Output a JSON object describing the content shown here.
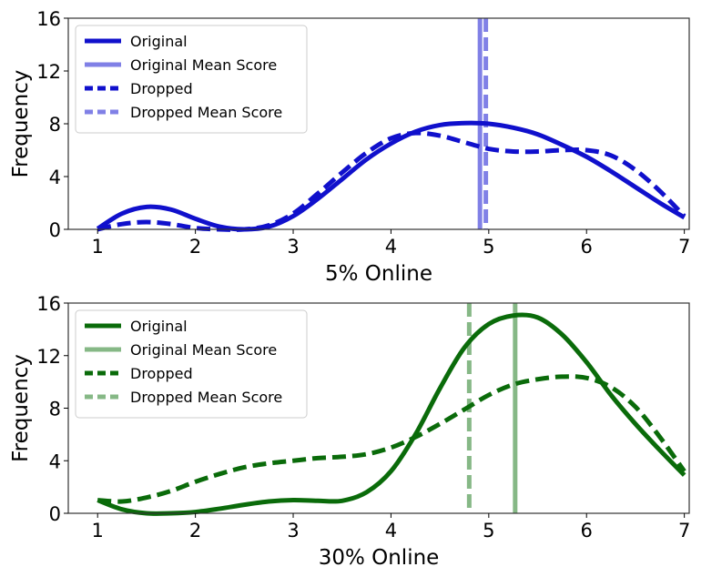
{
  "chart_data": [
    {
      "type": "line",
      "xlabel": "5% Online",
      "ylabel": "Frequency",
      "xlim": [
        0.7,
        7.05
      ],
      "ylim": [
        0,
        16
      ],
      "xticks": [
        "1",
        "2",
        "3",
        "4",
        "5",
        "6",
        "7"
      ],
      "yticks": [
        "0",
        "4",
        "8",
        "12",
        "16"
      ],
      "color": "#1010cc",
      "mean_color": "#8080e6",
      "legend": {
        "position": "top-left",
        "entries": [
          "Original",
          "Original Mean Score",
          "Dropped",
          "Dropped Mean Score"
        ]
      },
      "series": [
        {
          "name": "Original",
          "style": "solid",
          "x": [
            1,
            1.25,
            1.5,
            1.75,
            2,
            2.25,
            2.5,
            2.75,
            3,
            3.25,
            3.5,
            3.75,
            4,
            4.25,
            4.5,
            4.75,
            5,
            5.25,
            5.5,
            5.75,
            6,
            6.25,
            6.5,
            6.75,
            7
          ],
          "y": [
            0.05,
            1.2,
            1.7,
            1.5,
            0.8,
            0.2,
            0.0,
            0.2,
            1.0,
            2.3,
            3.8,
            5.3,
            6.5,
            7.4,
            7.9,
            8.05,
            8.0,
            7.7,
            7.2,
            6.4,
            5.5,
            4.4,
            3.2,
            2.0,
            0.9
          ]
        },
        {
          "name": "Dropped",
          "style": "dashed",
          "x": [
            1,
            1.25,
            1.5,
            1.75,
            2,
            2.25,
            2.5,
            2.75,
            3,
            3.25,
            3.5,
            3.75,
            4,
            4.25,
            4.5,
            4.75,
            5,
            5.25,
            5.5,
            5.75,
            6,
            6.25,
            6.5,
            6.75,
            7
          ],
          "y": [
            0.0,
            0.4,
            0.55,
            0.4,
            0.1,
            0.0,
            0.0,
            0.3,
            1.2,
            2.7,
            4.3,
            5.8,
            6.9,
            7.3,
            7.1,
            6.6,
            6.1,
            5.9,
            5.9,
            6.0,
            6.0,
            5.6,
            4.5,
            2.9,
            1.0
          ]
        }
      ],
      "mean_lines": [
        {
          "name": "Original Mean Score",
          "style": "solid",
          "x": 4.91
        },
        {
          "name": "Dropped Mean Score",
          "style": "dashed",
          "x": 4.97
        }
      ]
    },
    {
      "type": "line",
      "xlabel": "30% Online",
      "ylabel": "Frequency",
      "xlim": [
        0.7,
        7.05
      ],
      "ylim": [
        0,
        16
      ],
      "xticks": [
        "1",
        "2",
        "3",
        "4",
        "5",
        "6",
        "7"
      ],
      "yticks": [
        "0",
        "4",
        "8",
        "12",
        "16"
      ],
      "color": "#0a6b0a",
      "mean_color": "#86b886",
      "legend": {
        "position": "top-left",
        "entries": [
          "Original",
          "Original Mean Score",
          "Dropped",
          "Dropped Mean Score"
        ]
      },
      "series": [
        {
          "name": "Original",
          "style": "solid",
          "x": [
            1,
            1.25,
            1.5,
            1.75,
            2,
            2.25,
            2.5,
            2.75,
            3,
            3.25,
            3.5,
            3.75,
            4,
            4.25,
            4.5,
            4.75,
            5,
            5.25,
            5.5,
            5.75,
            6,
            6.25,
            6.5,
            6.75,
            7
          ],
          "y": [
            1.0,
            0.3,
            0.0,
            0.0,
            0.1,
            0.35,
            0.65,
            0.9,
            1.0,
            0.95,
            0.95,
            1.6,
            3.2,
            6.0,
            9.5,
            12.6,
            14.4,
            15.05,
            14.9,
            13.6,
            11.5,
            9.0,
            6.8,
            4.8,
            2.9
          ]
        },
        {
          "name": "Dropped",
          "style": "dashed",
          "x": [
            1,
            1.25,
            1.5,
            1.75,
            2,
            2.25,
            2.5,
            2.75,
            3,
            3.25,
            3.5,
            3.75,
            4,
            4.25,
            4.5,
            4.75,
            5,
            5.25,
            5.5,
            5.75,
            6,
            6.25,
            6.5,
            6.75,
            7
          ],
          "y": [
            1.0,
            0.9,
            1.2,
            1.7,
            2.4,
            3.0,
            3.5,
            3.8,
            4.0,
            4.2,
            4.3,
            4.5,
            5.0,
            5.8,
            6.8,
            7.9,
            9.0,
            9.8,
            10.2,
            10.4,
            10.3,
            9.6,
            8.1,
            5.8,
            3.2
          ]
        }
      ],
      "mean_lines": [
        {
          "name": "Original Mean Score",
          "style": "solid",
          "x": 5.27
        },
        {
          "name": "Dropped Mean Score",
          "style": "dashed",
          "x": 4.8
        }
      ]
    }
  ]
}
